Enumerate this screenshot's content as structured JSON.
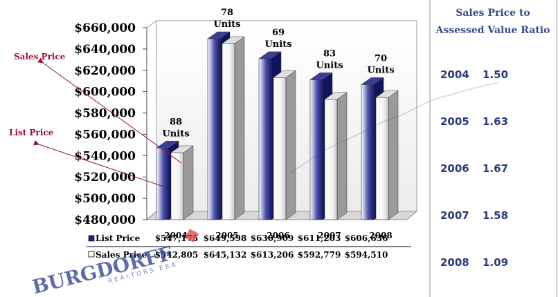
{
  "chart_data": {
    "type": "bar",
    "categories": [
      "2004",
      "2005",
      "2006",
      "2007",
      "2008"
    ],
    "series": [
      {
        "name": "List Price",
        "values": [
          547175,
          649598,
          630909,
          611203,
          606636
        ],
        "labels": [
          "$547,175",
          "$649,598",
          "$630,909",
          "$611,203",
          "$606,636"
        ]
      },
      {
        "name": "Sales Price",
        "values": [
          542805,
          645132,
          613206,
          592779,
          594510
        ],
        "labels": [
          "$542,805",
          "$645,132",
          "$613,206",
          "$592,779",
          "$594,510"
        ]
      }
    ],
    "units_labels": [
      {
        "count": "88",
        "word": "Units"
      },
      {
        "count": "78",
        "word": "Units"
      },
      {
        "count": "69",
        "word": "Units"
      },
      {
        "count": "83",
        "word": "Units"
      },
      {
        "count": "70",
        "word": "Units"
      }
    ],
    "ylim": [
      480000,
      660000
    ],
    "yticks": [
      "$480,000",
      "$500,000",
      "$520,000",
      "$540,000",
      "$560,000",
      "$580,000",
      "$600,000",
      "$620,000",
      "$640,000",
      "$660,000"
    ],
    "ytick_values": [
      480000,
      500000,
      520000,
      540000,
      560000,
      580000,
      600000,
      620000,
      640000,
      660000
    ],
    "colors": {
      "list": "#1c237a",
      "sales": "#ffffff",
      "annotation": "#9a1030",
      "ratio_text": "#2a3a7a"
    },
    "annotations": [
      "Sales Price",
      "List Price"
    ],
    "data_table": true,
    "grid": false
  },
  "ratio_panel": {
    "title_line1": "Sales Price to",
    "title_line2": "Assessed Value Ratio",
    "rows": [
      {
        "year": "2004",
        "value": "1.50"
      },
      {
        "year": "2005",
        "value": "1.63"
      },
      {
        "year": "2006",
        "value": "1.67"
      },
      {
        "year": "2007",
        "value": "1.58"
      },
      {
        "year": "2008",
        "value": "1.09"
      }
    ]
  },
  "watermark": {
    "text": "BURGDORFF",
    "sub": "REALTORS ERA"
  }
}
